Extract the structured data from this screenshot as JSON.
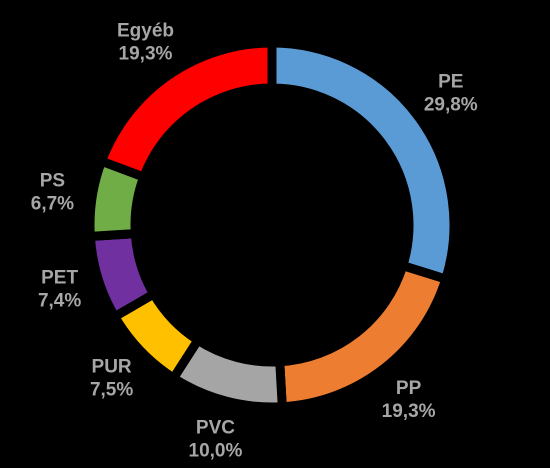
{
  "chart_data": {
    "type": "donut",
    "categories": [
      "PE",
      "PP",
      "PVC",
      "PUR",
      "PET",
      "PS",
      "Egyéb"
    ],
    "values": [
      29.8,
      19.3,
      10.0,
      7.5,
      7.4,
      6.7,
      19.3
    ],
    "value_labels": [
      "29,8%",
      "19,3%",
      "10,0%",
      "7,5%",
      "7,4%",
      "6,7%",
      "19,3%"
    ],
    "colors": [
      "#5b9bd5",
      "#ed7d31",
      "#a5a5a5",
      "#ffc000",
      "#7030a0",
      "#70ad47",
      "#ff0000"
    ]
  }
}
